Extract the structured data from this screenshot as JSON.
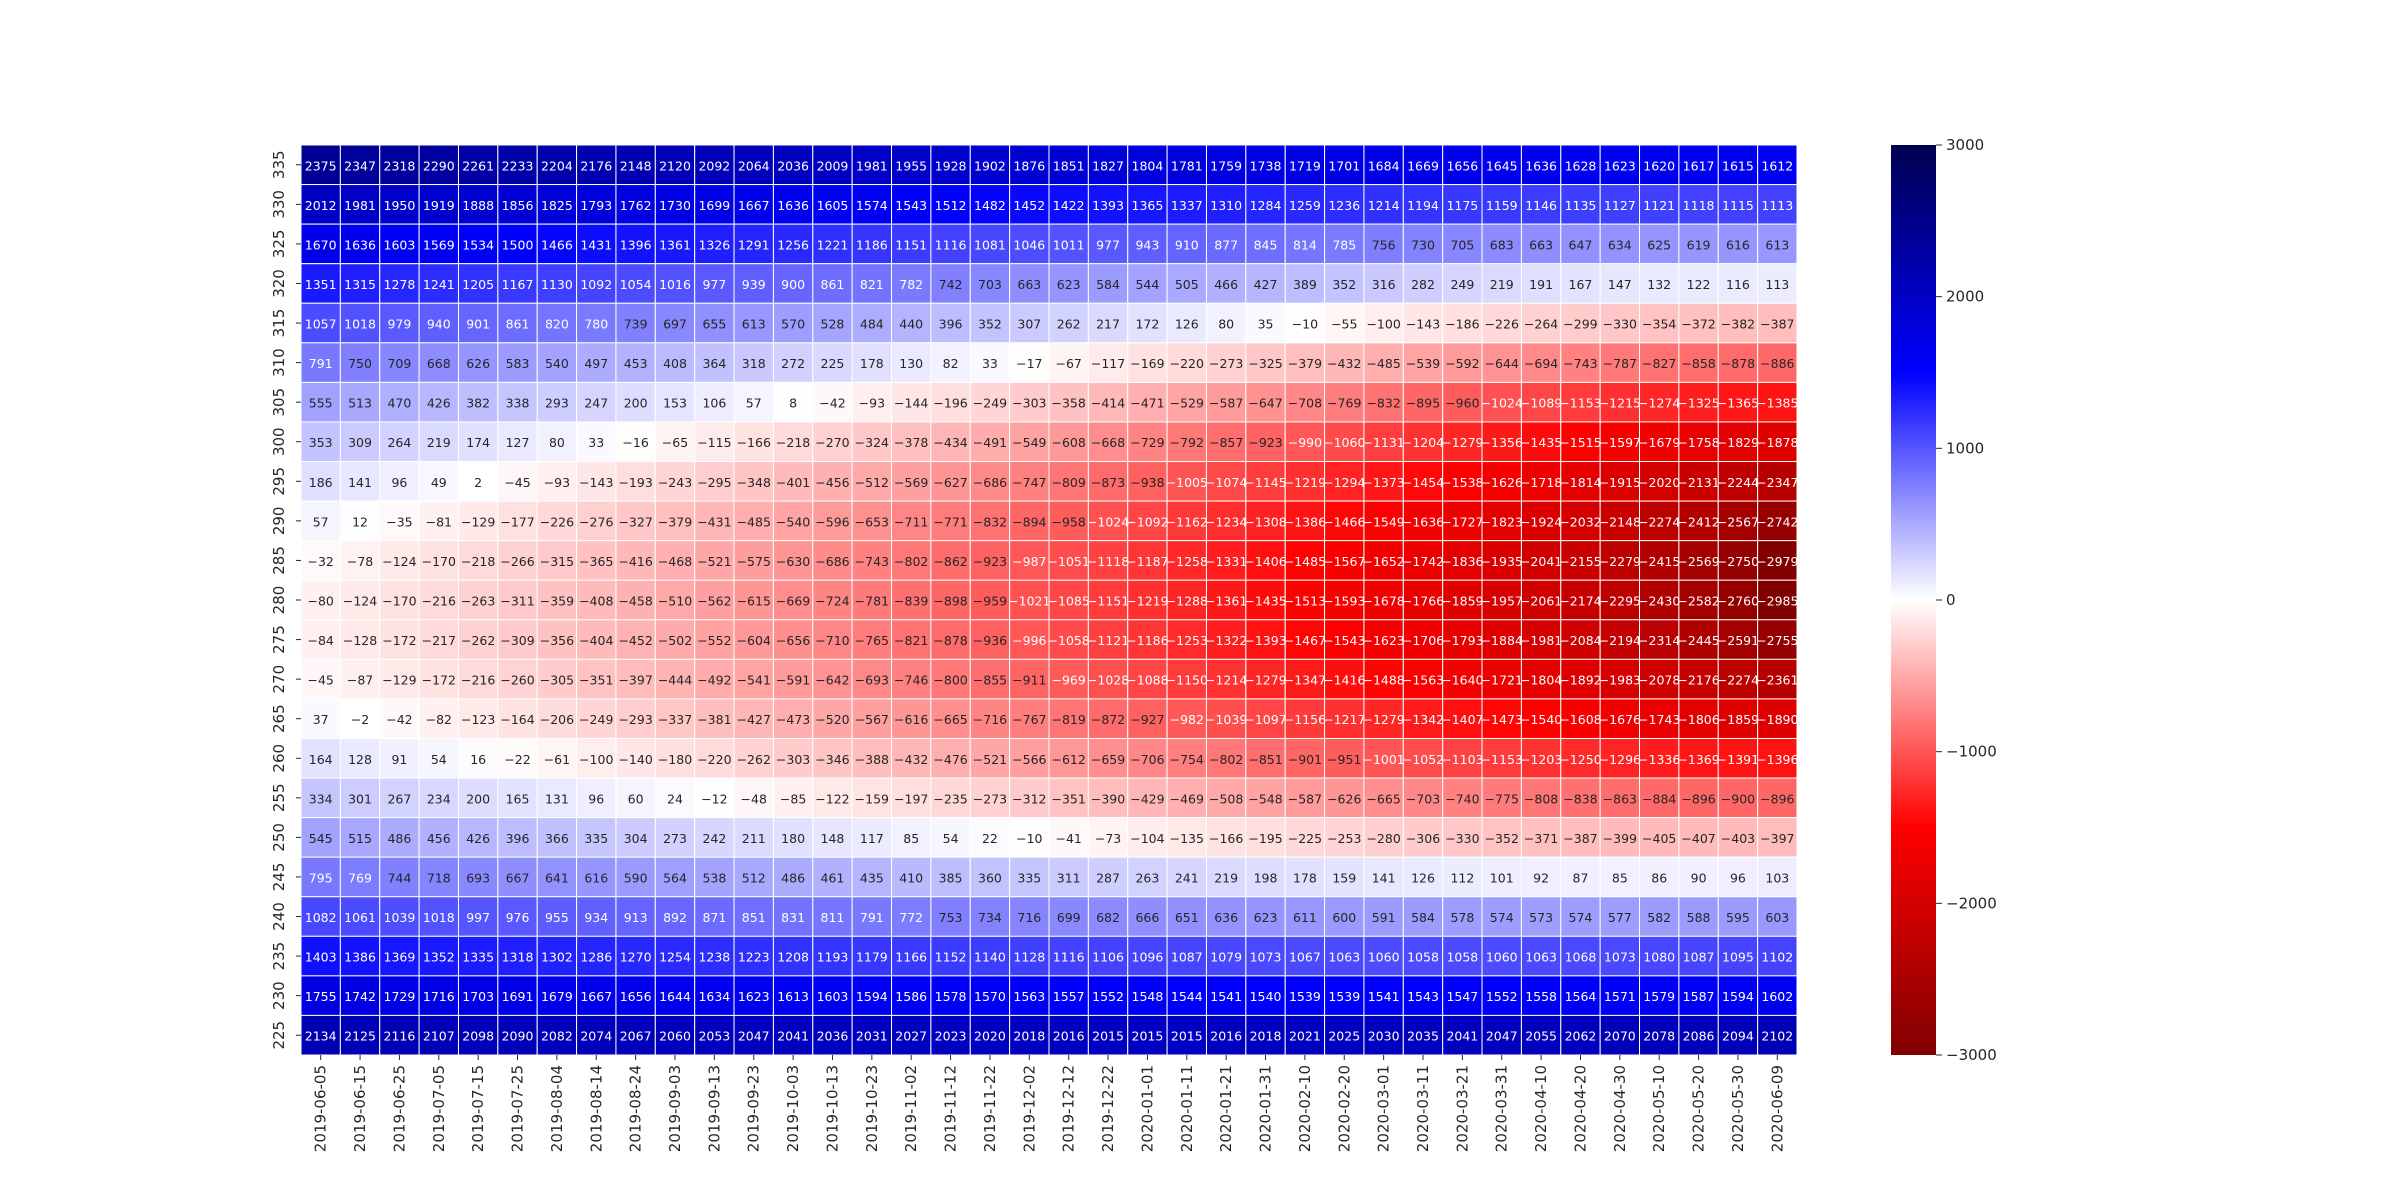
{
  "chart_data": {
    "type": "heatmap",
    "title": "",
    "xlabel": "",
    "ylabel": "",
    "x": [
      "2019-06-05",
      "2019-06-15",
      "2019-06-25",
      "2019-07-05",
      "2019-07-15",
      "2019-07-25",
      "2019-08-04",
      "2019-08-14",
      "2019-08-24",
      "2019-09-03",
      "2019-09-13",
      "2019-09-23",
      "2019-10-03",
      "2019-10-13",
      "2019-10-23",
      "2019-11-02",
      "2019-11-12",
      "2019-11-22",
      "2019-12-02",
      "2019-12-12",
      "2019-12-22",
      "2020-01-01",
      "2020-01-11",
      "2020-01-21",
      "2020-01-31",
      "2020-02-10",
      "2020-02-20",
      "2020-03-01",
      "2020-03-11",
      "2020-03-21",
      "2020-03-31",
      "2020-04-10",
      "2020-04-20",
      "2020-04-30",
      "2020-05-10",
      "2020-05-20",
      "2020-05-30",
      "2020-06-09"
    ],
    "y": [
      "335",
      "330",
      "325",
      "320",
      "315",
      "310",
      "305",
      "300",
      "295",
      "290",
      "285",
      "280",
      "275",
      "270",
      "265",
      "260",
      "255",
      "250",
      "245",
      "240",
      "235",
      "230",
      "225"
    ],
    "values": [
      [
        2375,
        2347,
        2318,
        2290,
        2261,
        2233,
        2204,
        2176,
        2148,
        2120,
        2092,
        2064,
        2036,
        2009,
        1981,
        1955,
        1928,
        1902,
        1876,
        1851,
        1827,
        1804,
        1781,
        1759,
        1738,
        1719,
        1701,
        1684,
        1669,
        1656,
        1645,
        1636,
        1628,
        1623,
        1620,
        1617,
        1615,
        1612
      ],
      [
        2012,
        1981,
        1950,
        1919,
        1888,
        1856,
        1825,
        1793,
        1762,
        1730,
        1699,
        1667,
        1636,
        1605,
        1574,
        1543,
        1512,
        1482,
        1452,
        1422,
        1393,
        1365,
        1337,
        1310,
        1284,
        1259,
        1236,
        1214,
        1194,
        1175,
        1159,
        1146,
        1135,
        1127,
        1121,
        1118,
        1115,
        1113
      ],
      [
        1670,
        1636,
        1603,
        1569,
        1534,
        1500,
        1466,
        1431,
        1396,
        1361,
        1326,
        1291,
        1256,
        1221,
        1186,
        1151,
        1116,
        1081,
        1046,
        1011,
        977,
        943,
        910,
        877,
        845,
        814,
        785,
        756,
        730,
        705,
        683,
        663,
        647,
        634,
        625,
        619,
        616,
        613
      ],
      [
        1351,
        1315,
        1278,
        1241,
        1205,
        1167,
        1130,
        1092,
        1054,
        1016,
        977,
        939,
        900,
        861,
        821,
        782,
        742,
        703,
        663,
        623,
        584,
        544,
        505,
        466,
        427,
        389,
        352,
        316,
        282,
        249,
        219,
        191,
        167,
        147,
        132,
        122,
        116,
        113
      ],
      [
        1057,
        1018,
        979,
        940,
        901,
        861,
        820,
        780,
        739,
        697,
        655,
        613,
        570,
        528,
        484,
        440,
        396,
        352,
        307,
        262,
        217,
        172,
        126,
        80,
        35,
        -10,
        -55,
        -100,
        -143,
        -186,
        -226,
        -264,
        -299,
        -330,
        -354,
        -372,
        -382,
        -387
      ],
      [
        791,
        750,
        709,
        668,
        626,
        583,
        540,
        497,
        453,
        408,
        364,
        318,
        272,
        225,
        178,
        130,
        82,
        33,
        -17,
        -67,
        -117,
        -169,
        -220,
        -273,
        -325,
        -379,
        -432,
        -485,
        -539,
        -592,
        -644,
        -694,
        -743,
        -787,
        -827,
        -858,
        -878,
        -886
      ],
      [
        555,
        513,
        470,
        426,
        382,
        338,
        293,
        247,
        200,
        153,
        106,
        57,
        8,
        -42,
        -93,
        -144,
        -196,
        -249,
        -303,
        -358,
        -414,
        -471,
        -529,
        -587,
        -647,
        -708,
        -769,
        -832,
        -895,
        -960,
        -1024,
        -1089,
        -1153,
        -1215,
        -1274,
        -1325,
        -1365,
        -1385
      ],
      [
        353,
        309,
        264,
        219,
        174,
        127,
        80,
        33,
        -16,
        -65,
        -115,
        -166,
        -218,
        -270,
        -324,
        -378,
        -434,
        -491,
        -549,
        -608,
        -668,
        -729,
        -792,
        -857,
        -923,
        -990,
        -1060,
        -1131,
        -1204,
        -1279,
        -1356,
        -1435,
        -1515,
        -1597,
        -1679,
        -1758,
        -1829,
        -1878
      ],
      [
        186,
        141,
        96,
        49,
        2,
        -45,
        -93,
        -143,
        -193,
        -243,
        -295,
        -348,
        -401,
        -456,
        -512,
        -569,
        -627,
        -686,
        -747,
        -809,
        -873,
        -938,
        -1005,
        -1074,
        -1145,
        -1219,
        -1294,
        -1373,
        -1454,
        -1538,
        -1626,
        -1718,
        -1814,
        -1915,
        -2020,
        -2131,
        -2244,
        -2347
      ],
      [
        57,
        12,
        -35,
        -81,
        -129,
        -177,
        -226,
        -276,
        -327,
        -379,
        -431,
        -485,
        -540,
        -596,
        -653,
        -711,
        -771,
        -832,
        -894,
        -958,
        -1024,
        -1092,
        -1162,
        -1234,
        -1308,
        -1386,
        -1466,
        -1549,
        -1636,
        -1727,
        -1823,
        -1924,
        -2032,
        -2148,
        -2274,
        -2412,
        -2567,
        -2742
      ],
      [
        -32,
        -78,
        -124,
        -170,
        -218,
        -266,
        -315,
        -365,
        -416,
        -468,
        -521,
        -575,
        -630,
        -686,
        -743,
        -802,
        -862,
        -923,
        -987,
        -1051,
        -1118,
        -1187,
        -1258,
        -1331,
        -1406,
        -1485,
        -1567,
        -1652,
        -1742,
        -1836,
        -1935,
        -2041,
        -2155,
        -2279,
        -2415,
        -2569,
        -2750,
        -2979
      ],
      [
        -80,
        -124,
        -170,
        -216,
        -263,
        -311,
        -359,
        -408,
        -458,
        -510,
        -562,
        -615,
        -669,
        -724,
        -781,
        -839,
        -898,
        -959,
        -1021,
        -1085,
        -1151,
        -1219,
        -1288,
        -1361,
        -1435,
        -1513,
        -1593,
        -1678,
        -1766,
        -1859,
        -1957,
        -2061,
        -2174,
        -2295,
        -2430,
        -2582,
        -2760,
        -2985
      ],
      [
        -84,
        -128,
        -172,
        -217,
        -262,
        -309,
        -356,
        -404,
        -452,
        -502,
        -552,
        -604,
        -656,
        -710,
        -765,
        -821,
        -878,
        -936,
        -996,
        -1058,
        -1121,
        -1186,
        -1253,
        -1322,
        -1393,
        -1467,
        -1543,
        -1623,
        -1706,
        -1793,
        -1884,
        -1981,
        -2084,
        -2194,
        -2314,
        -2445,
        -2591,
        -2755
      ],
      [
        -45,
        -87,
        -129,
        -172,
        -216,
        -260,
        -305,
        -351,
        -397,
        -444,
        -492,
        -541,
        -591,
        -642,
        -693,
        -746,
        -800,
        -855,
        -911,
        -969,
        -1028,
        -1088,
        -1150,
        -1214,
        -1279,
        -1347,
        -1416,
        -1488,
        -1563,
        -1640,
        -1721,
        -1804,
        -1892,
        -1983,
        -2078,
        -2176,
        -2274,
        -2361
      ],
      [
        37,
        -2,
        -42,
        -82,
        -123,
        -164,
        -206,
        -249,
        -293,
        -337,
        -381,
        -427,
        -473,
        -520,
        -567,
        -616,
        -665,
        -716,
        -767,
        -819,
        -872,
        -927,
        -982,
        -1039,
        -1097,
        -1156,
        -1217,
        -1279,
        -1342,
        -1407,
        -1473,
        -1540,
        -1608,
        -1676,
        -1743,
        -1806,
        -1859,
        -1890
      ],
      [
        164,
        128,
        91,
        54,
        16,
        -22,
        -61,
        -100,
        -140,
        -180,
        -220,
        -262,
        -303,
        -346,
        -388,
        -432,
        -476,
        -521,
        -566,
        -612,
        -659,
        -706,
        -754,
        -802,
        -851,
        -901,
        -951,
        -1001,
        -1052,
        -1103,
        -1153,
        -1203,
        -1250,
        -1296,
        -1336,
        -1369,
        -1391,
        -1396
      ],
      [
        334,
        301,
        267,
        234,
        200,
        165,
        131,
        96,
        60,
        24,
        -12,
        -48,
        -85,
        -122,
        -159,
        -197,
        -235,
        -273,
        -312,
        -351,
        -390,
        -429,
        -469,
        -508,
        -548,
        -587,
        -626,
        -665,
        -703,
        -740,
        -775,
        -808,
        -838,
        -863,
        -884,
        -896,
        -900,
        -896
      ],
      [
        545,
        515,
        486,
        456,
        426,
        396,
        366,
        335,
        304,
        273,
        242,
        211,
        180,
        148,
        117,
        85,
        54,
        22,
        -10,
        -41,
        -73,
        -104,
        -135,
        -166,
        -195,
        -225,
        -253,
        -280,
        -306,
        -330,
        -352,
        -371,
        -387,
        -399,
        -405,
        -407,
        -403,
        -397
      ],
      [
        795,
        769,
        744,
        718,
        693,
        667,
        641,
        616,
        590,
        564,
        538,
        512,
        486,
        461,
        435,
        410,
        385,
        360,
        335,
        311,
        287,
        263,
        241,
        219,
        198,
        178,
        159,
        141,
        126,
        112,
        101,
        92,
        87,
        85,
        86,
        90,
        96,
        103
      ],
      [
        1082,
        1061,
        1039,
        1018,
        997,
        976,
        955,
        934,
        913,
        892,
        871,
        851,
        831,
        811,
        791,
        772,
        753,
        734,
        716,
        699,
        682,
        666,
        651,
        636,
        623,
        611,
        600,
        591,
        584,
        578,
        574,
        573,
        574,
        577,
        582,
        588,
        595,
        603
      ],
      [
        1403,
        1386,
        1369,
        1352,
        1335,
        1318,
        1302,
        1286,
        1270,
        1254,
        1238,
        1223,
        1208,
        1193,
        1179,
        1166,
        1152,
        1140,
        1128,
        1116,
        1106,
        1096,
        1087,
        1079,
        1073,
        1067,
        1063,
        1060,
        1058,
        1058,
        1060,
        1063,
        1068,
        1073,
        1080,
        1087,
        1095,
        1102
      ],
      [
        1755,
        1742,
        1729,
        1716,
        1703,
        1691,
        1679,
        1667,
        1656,
        1644,
        1634,
        1623,
        1613,
        1603,
        1594,
        1586,
        1578,
        1570,
        1563,
        1557,
        1552,
        1548,
        1544,
        1541,
        1540,
        1539,
        1539,
        1541,
        1543,
        1547,
        1552,
        1558,
        1564,
        1571,
        1579,
        1587,
        1594,
        1602
      ],
      [
        2134,
        2125,
        2116,
        2107,
        2098,
        2090,
        2082,
        2074,
        2067,
        2060,
        2053,
        2047,
        2041,
        2036,
        2031,
        2027,
        2023,
        2020,
        2018,
        2016,
        2015,
        2015,
        2015,
        2016,
        2018,
        2021,
        2025,
        2030,
        2035,
        2041,
        2047,
        2055,
        2062,
        2070,
        2078,
        2086,
        2094,
        2102
      ]
    ],
    "vmin": -3000,
    "vmax": 3000,
    "colormap": "seismic",
    "colorbar_ticks": [
      3000,
      2000,
      1000,
      0,
      -1000,
      -2000,
      -3000
    ],
    "colorbar_tick_labels": [
      "3000",
      "2000",
      "1000",
      "0",
      "−1000",
      "−2000",
      "−3000"
    ],
    "annotated": true,
    "cell_border_color": "#ffffff"
  }
}
